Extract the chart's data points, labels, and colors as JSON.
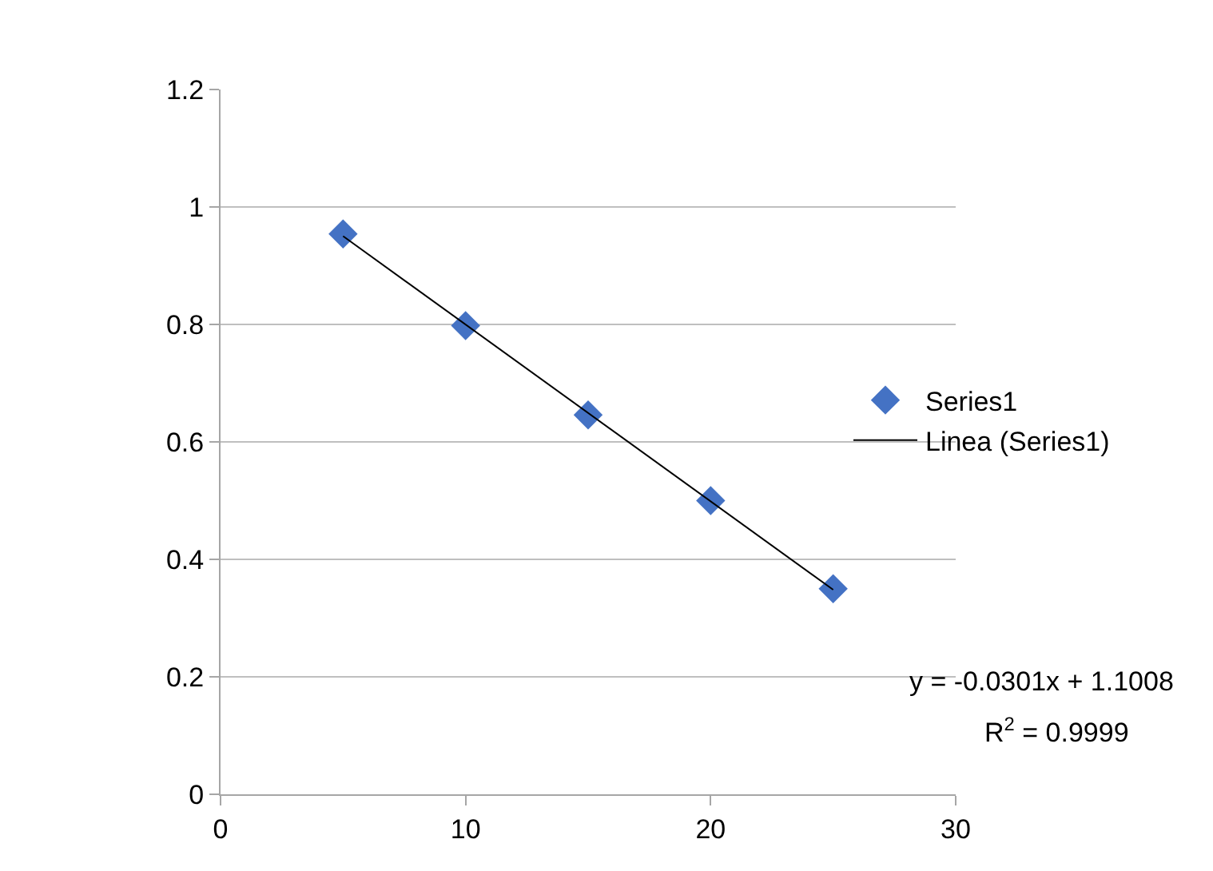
{
  "chart_data": {
    "type": "scatter",
    "x": [
      5,
      10,
      15,
      20,
      25
    ],
    "series": [
      {
        "name": "Series1",
        "color": "#4472c4",
        "values": [
          0.954,
          0.798,
          0.646,
          0.5,
          0.35
        ],
        "marker": "diamond"
      },
      {
        "name": "Linea (Series1)",
        "color": "#000000",
        "type": "line",
        "x": [
          5,
          25
        ],
        "values": [
          0.9503,
          0.3483
        ],
        "marker": "none"
      }
    ],
    "xlim": [
      0,
      30
    ],
    "xticks": [
      0,
      10,
      20,
      30
    ],
    "ylim": [
      0,
      1.2
    ],
    "yticks": [
      0,
      0.2,
      0.4,
      0.6,
      0.8,
      1,
      1.2
    ],
    "grid": "y",
    "legend": "right",
    "annotations": [
      "y = -0.0301x + 1.1008",
      "R$^{2}$ = 0.9999"
    ]
  }
}
